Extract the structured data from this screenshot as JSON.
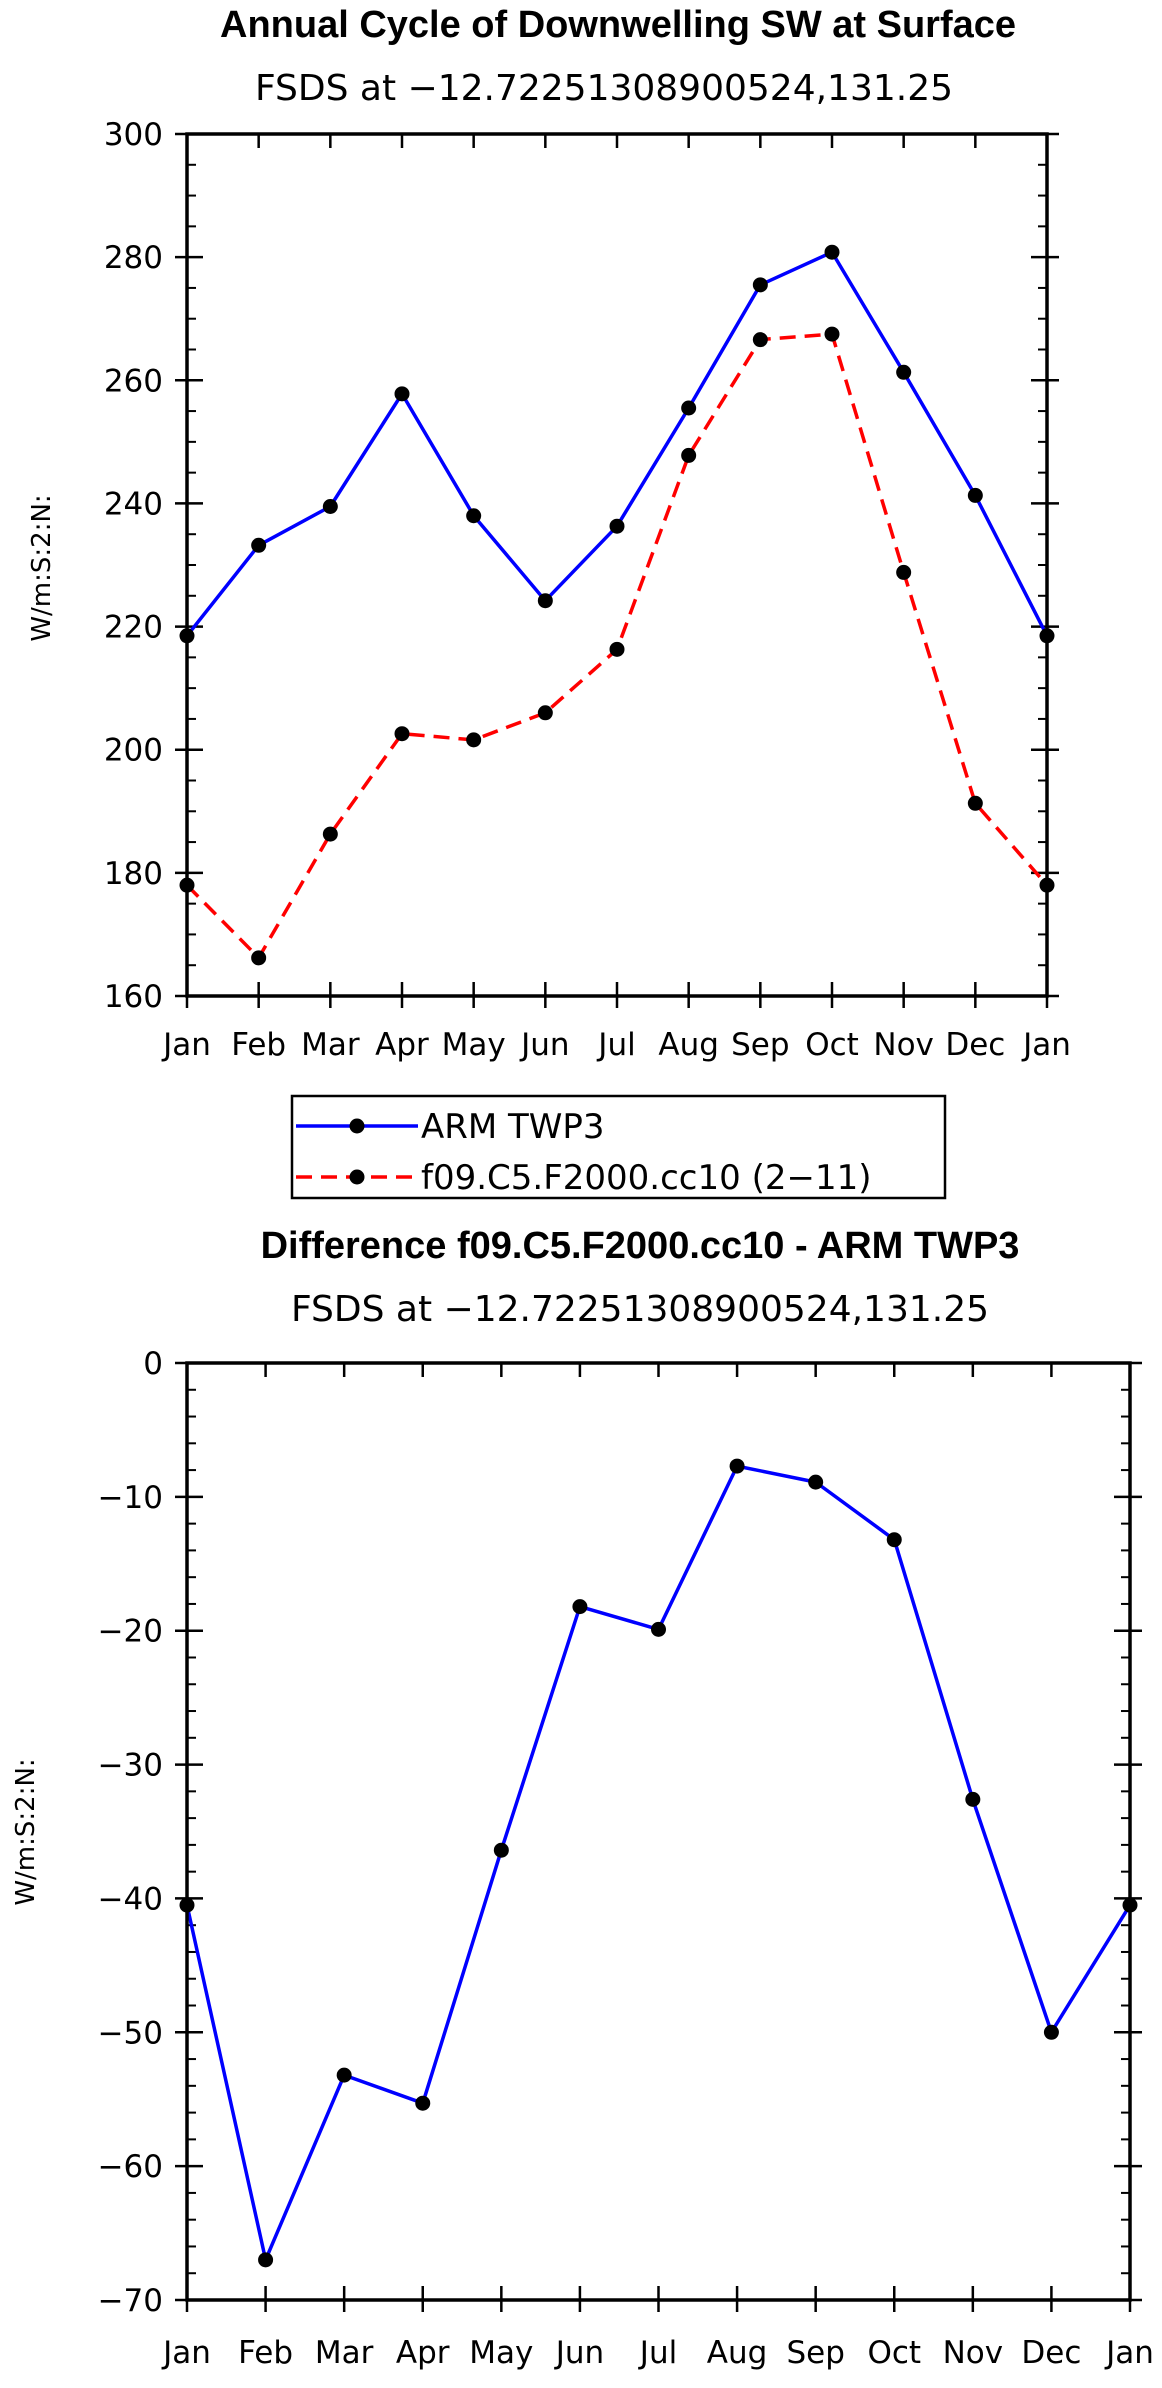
{
  "chart_data": [
    {
      "type": "line",
      "title": "Annual Cycle of Downwelling SW at Surface",
      "subtitle": "FSDS at −12.72251308900524,131.25",
      "xlabel": "",
      "ylabel": "W/m:S:2:N:",
      "categories": [
        "Jan",
        "Feb",
        "Mar",
        "Apr",
        "May",
        "Jun",
        "Jul",
        "Aug",
        "Sep",
        "Oct",
        "Nov",
        "Dec",
        "Jan"
      ],
      "ylim": [
        160,
        300
      ],
      "yticks": [
        160,
        180,
        200,
        220,
        240,
        260,
        280,
        300
      ],
      "ytick_labels": [
        "160",
        "180",
        "200",
        "220",
        "240",
        "260",
        "280",
        "300"
      ],
      "series": [
        {
          "name": "ARM TWP3",
          "color": "#0000ff",
          "dash": "solid",
          "values": [
            218.5,
            233.2,
            239.5,
            257.8,
            238.0,
            224.2,
            236.3,
            255.5,
            275.5,
            280.8,
            261.3,
            241.3,
            218.5
          ]
        },
        {
          "name": "f09.C5.F2000.cc10 (2−11)",
          "color": "#ff0000",
          "dash": "dashed",
          "values": [
            178.0,
            166.2,
            186.3,
            202.6,
            201.6,
            206.0,
            216.3,
            247.8,
            266.6,
            267.5,
            228.8,
            191.3,
            178.0
          ]
        }
      ],
      "legend": {
        "placement": "below",
        "entries": [
          "ARM TWP3",
          "f09.C5.F2000.cc10 (2−11)"
        ]
      }
    },
    {
      "type": "line",
      "title": "Difference f09.C5.F2000.cc10 - ARM TWP3",
      "subtitle": "FSDS at −12.72251308900524,131.25",
      "xlabel": "",
      "ylabel": "W/m:S:2:N:",
      "categories": [
        "Jan",
        "Feb",
        "Mar",
        "Apr",
        "May",
        "Jun",
        "Jul",
        "Aug",
        "Sep",
        "Oct",
        "Nov",
        "Dec",
        "Jan"
      ],
      "ylim": [
        -70,
        0
      ],
      "yticks": [
        -70,
        -60,
        -50,
        -40,
        -30,
        -20,
        -10,
        0
      ],
      "ytick_labels": [
        "−70",
        "−60",
        "−50",
        "−40",
        "−30",
        "−20",
        "−10",
        "0"
      ],
      "series": [
        {
          "name": "Difference",
          "color": "#0000ff",
          "dash": "solid",
          "values": [
            -40.5,
            -67.0,
            -53.2,
            -55.3,
            -36.4,
            -18.2,
            -19.9,
            -7.7,
            -8.9,
            -13.2,
            -32.6,
            -50.0,
            -40.5
          ]
        }
      ]
    }
  ]
}
